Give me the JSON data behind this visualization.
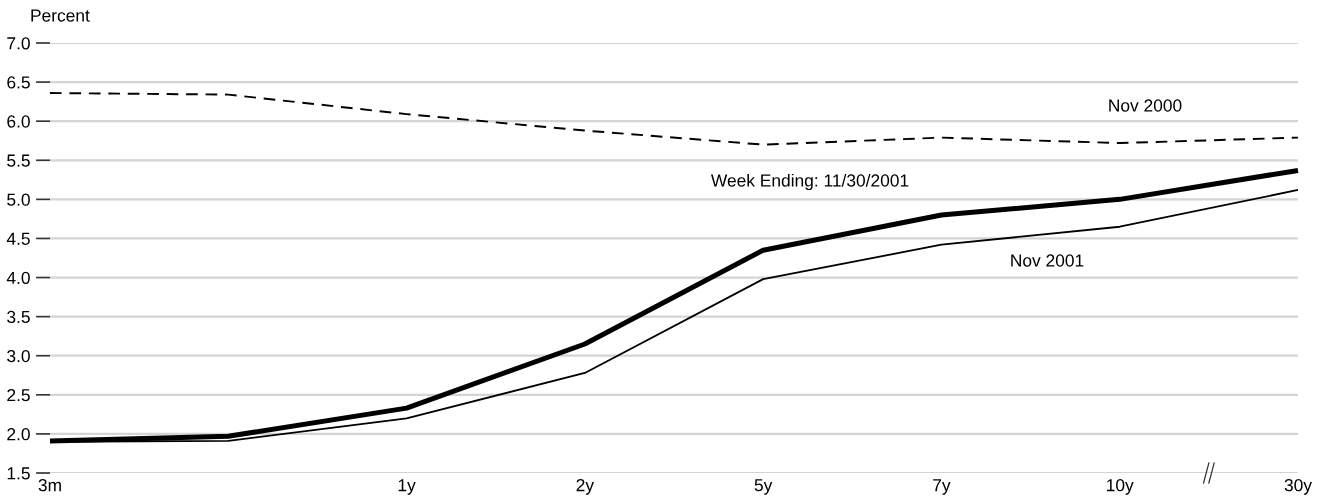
{
  "chart_data": {
    "type": "line",
    "ylabel": "Percent",
    "categories": [
      "3m",
      null,
      "1y",
      "2y",
      "5y",
      "7y",
      "10y",
      "30y"
    ],
    "ylim": [
      1.5,
      7.0
    ],
    "yticks": [
      {
        "value": 1.5,
        "label": "1.5"
      },
      {
        "value": 2,
        "label": "2.0"
      },
      {
        "value": 2.5,
        "label": "2.5"
      },
      {
        "value": 3,
        "label": "3.0"
      },
      {
        "value": 3.5,
        "label": "3.5"
      },
      {
        "value": 4,
        "label": "4.0"
      },
      {
        "value": 4.5,
        "label": "4.5"
      },
      {
        "value": 5,
        "label": "5.0"
      },
      {
        "value": 5.5,
        "label": "5.5"
      },
      {
        "value": 6,
        "label": "6.0"
      },
      {
        "value": 6.5,
        "label": "6.5"
      },
      {
        "value": 7,
        "label": "7.0"
      }
    ],
    "grid": "y",
    "legend": false,
    "marker": "none",
    "series": [
      {
        "name": "Nov 2000",
        "color": "#000000",
        "line_style": "dashed",
        "values": [
          6.36,
          6.34,
          6.09,
          5.88,
          5.7,
          5.79,
          5.72,
          5.79
        ]
      },
      {
        "name": "Week Ending: 11/30/2001",
        "color": "#000000",
        "line_style": "solid",
        "values": [
          1.91,
          1.97,
          2.33,
          3.15,
          4.35,
          4.8,
          5.0,
          5.37
        ]
      },
      {
        "name": "Nov 2001",
        "color": "#000000",
        "line_style": "solid",
        "values": [
          1.9,
          1.91,
          2.2,
          2.78,
          3.98,
          4.42,
          4.65,
          5.12
        ]
      }
    ]
  }
}
